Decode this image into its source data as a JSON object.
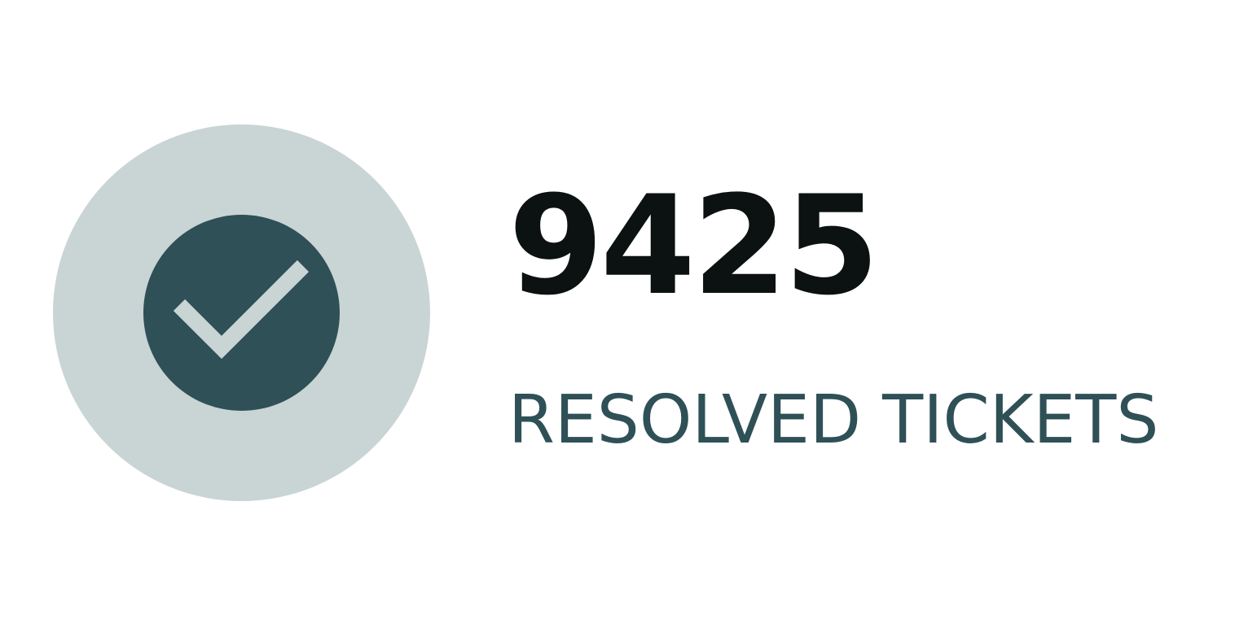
{
  "stat": {
    "value": "9425",
    "label": "RESOLVED TICKETS",
    "icon": "check-icon"
  },
  "colors": {
    "outer_circle": "#c9d4d5",
    "inner_circle": "#2e5056",
    "checkmark": "#c9d4d5",
    "value_text": "#0c1112",
    "label_text": "#2e5056"
  }
}
